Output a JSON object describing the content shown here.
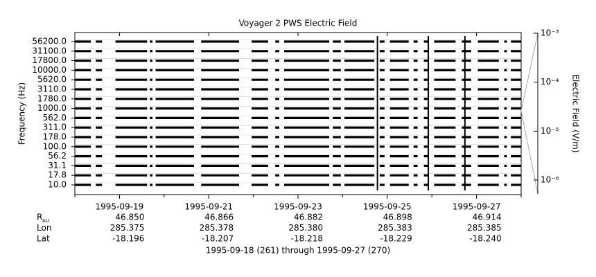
{
  "chart_data": {
    "type": "channel-coverage",
    "title": "Voyager 2 PWS Electric Field",
    "y_label": "Frequency (Hz)",
    "y2_label": "Electric Field (V/m)",
    "channels": [
      "10.0",
      "17.8",
      "31.1",
      "56.2",
      "100.0",
      "178.0",
      "311.0",
      "562.0",
      "1000.0",
      "1780.0",
      "3110.0",
      "5620.0",
      "10000.0",
      "17800.0",
      "31100.0",
      "56200.0"
    ],
    "xlim": [
      0,
      10
    ],
    "xticks": [
      {
        "value": 1,
        "label": "1995-09-19"
      },
      {
        "value": 3,
        "label": "1995-09-21"
      },
      {
        "value": 5,
        "label": "1995-09-23"
      },
      {
        "value": 7,
        "label": "1995-09-25"
      },
      {
        "value": 9,
        "label": "1995-09-27"
      }
    ],
    "xminor_ticks": [
      0,
      2,
      4,
      6,
      8,
      10
    ],
    "coverage": [
      [
        0,
        0.36
      ],
      [
        0.47,
        0.61
      ],
      [
        0.91,
        1.62
      ],
      [
        1.68,
        1.74
      ],
      [
        1.81,
        2.67
      ],
      [
        2.83,
        3.68
      ],
      [
        3.96,
        4.33
      ],
      [
        4.49,
        4.58
      ],
      [
        4.69,
        5.7
      ],
      [
        5.78,
        5.96
      ],
      [
        6.04,
        6.71
      ],
      [
        6.83,
        6.94
      ],
      [
        7.06,
        7.48
      ],
      [
        7.59,
        7.68
      ],
      [
        7.82,
        7.91
      ],
      [
        8.05,
        8.53
      ],
      [
        8.67,
        8.88
      ],
      [
        9.03,
        9.5
      ],
      [
        9.62,
        9.68
      ],
      [
        9.77,
        10
      ]
    ],
    "bursts": [
      6.78,
      7.92,
      8.74
    ],
    "color": "#000000",
    "y2_log": true,
    "y2lim": [
      1e-06,
      0.001
    ],
    "y2ticks": [
      {
        "value": 0.001,
        "label": "10⁻³"
      },
      {
        "value": 0.0001,
        "label": "10⁻⁴"
      },
      {
        "value": 1e-05,
        "label": "10⁻⁵"
      },
      {
        "value": 1e-06,
        "label": "10⁻⁶"
      }
    ],
    "ephemeris": [
      {
        "label": "R",
        "sub": "AU",
        "values": [
          "46.850",
          "46.866",
          "46.882",
          "46.898",
          "46.914"
        ]
      },
      {
        "label": "Lon",
        "values": [
          "285.375",
          "285.378",
          "285.380",
          "285.383",
          "285.385"
        ]
      },
      {
        "label": "Lat",
        "values": [
          "-18.196",
          "-18.207",
          "-18.218",
          "-18.229",
          "-18.240"
        ]
      }
    ],
    "footer": "1995-09-18 (261) through 1995-09-27 (270)"
  }
}
